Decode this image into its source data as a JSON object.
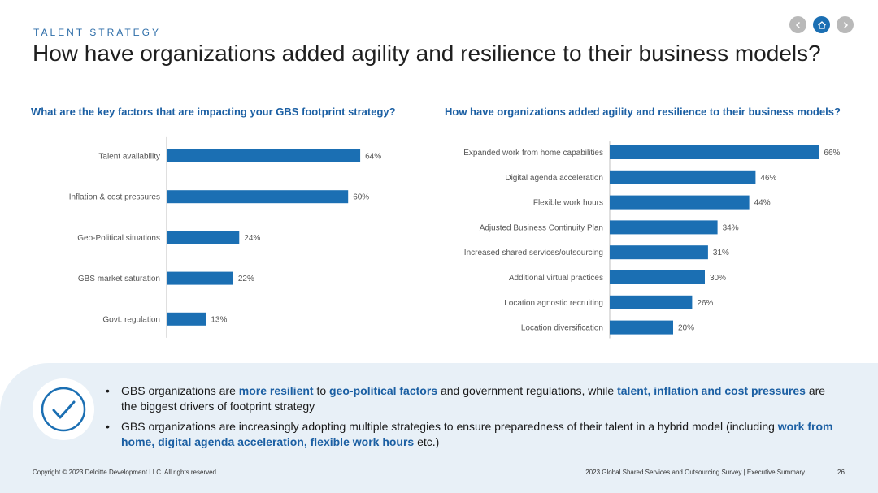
{
  "header": {
    "eyebrow": "TALENT STRATEGY",
    "title": "How have organizations added agility and resilience to their business models?"
  },
  "nav": {
    "prev_icon": "chevron-left-icon",
    "home_icon": "home-icon",
    "next_icon": "chevron-right-icon"
  },
  "colors": {
    "bar": "#1b6fb3",
    "accent": "#1b5fa3",
    "panel": "#e8f0f7"
  },
  "chart_data": [
    {
      "type": "bar",
      "orientation": "horizontal",
      "title": "What are the key factors that are impacting your GBS footprint strategy?",
      "categories": [
        "Talent availability",
        "Inflation & cost pressures",
        "Geo-Political situations",
        "GBS market saturation",
        "Govt. regulation"
      ],
      "values": [
        64,
        60,
        24,
        22,
        13
      ],
      "labels": [
        "64%",
        "60%",
        "24%",
        "22%",
        "13%"
      ],
      "unit": "%"
    },
    {
      "type": "bar",
      "orientation": "horizontal",
      "title": "How have organizations added agility and resilience to their business models?",
      "categories": [
        "Expanded work from home capabilities",
        "Digital agenda acceleration",
        "Flexible work hours",
        "Adjusted Business Continuity Plan",
        "Increased shared services/outsourcing",
        "Additional virtual practices",
        "Location agnostic recruiting",
        "Location diversification"
      ],
      "values": [
        66,
        46,
        44,
        34,
        31,
        30,
        26,
        20
      ],
      "labels": [
        "66%",
        "46%",
        "44%",
        "34%",
        "31%",
        "30%",
        "26%",
        "20%"
      ],
      "unit": "%"
    }
  ],
  "summary": {
    "check_icon": "checkmark-icon",
    "b1_p1": "GBS organizations are ",
    "b1_h1": "more resilient",
    "b1_p2": " to ",
    "b1_h2": "geo-political factors",
    "b1_p3": " and government regulations, while ",
    "b1_h3": "talent, inflation and cost pressures",
    "b1_p4": " are the biggest drivers of footprint strategy",
    "b2_p1": "GBS organizations are increasingly adopting multiple strategies to ensure preparedness of their talent in a hybrid model (including ",
    "b2_h1": "work from home, digital agenda acceleration, flexible work hours",
    "b2_p2": " etc.)"
  },
  "footer": {
    "copyright": "Copyright © 2023 Deloitte Development LLC. All rights reserved.",
    "source": "2023 Global Shared Services and Outsourcing Survey | Executive Summary",
    "page": "26"
  }
}
